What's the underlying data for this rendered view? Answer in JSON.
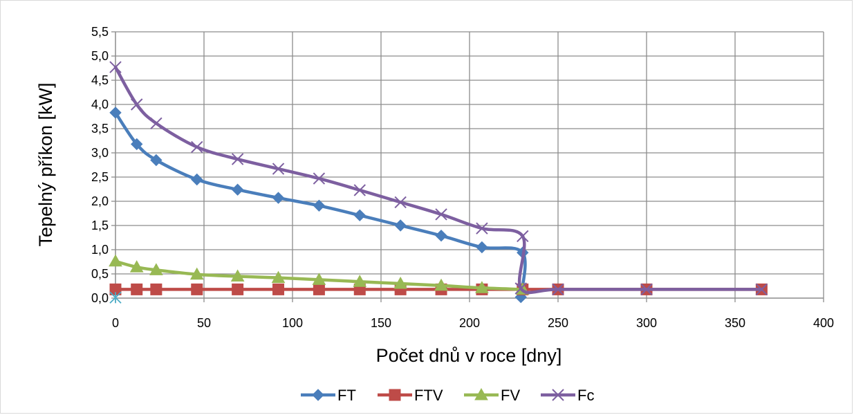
{
  "chart_data": {
    "type": "line",
    "title": "",
    "xlabel": "Počet dnů v roce [dny]",
    "ylabel": "Tepelný příkon [kW]",
    "xlim": [
      0,
      400
    ],
    "ylim": [
      0,
      5.5
    ],
    "x_ticks": [
      0,
      50,
      100,
      150,
      200,
      250,
      300,
      350,
      400
    ],
    "x_tick_labels": [
      "0",
      "50",
      "100",
      "150",
      "200",
      "250",
      "300",
      "350",
      "400"
    ],
    "y_ticks": [
      0,
      0.5,
      1,
      1.5,
      2,
      2.5,
      3,
      3.5,
      4,
      4.5,
      5,
      5.5
    ],
    "y_tick_labels": [
      "0,0",
      "0,5",
      "1,0",
      "1,5",
      "2,0",
      "2,5",
      "3,0",
      "3,5",
      "4,0",
      "4,5",
      "5,0",
      "5,5"
    ],
    "grid": true,
    "legend_position": "bottom",
    "series": [
      {
        "name": "FT",
        "color": "#4a7ebb",
        "marker": "diamond",
        "x": [
          0,
          12,
          23,
          46,
          69,
          92,
          115,
          138,
          161,
          184,
          207,
          230,
          229
        ],
        "y": [
          3.83,
          3.18,
          2.85,
          2.45,
          2.24,
          2.07,
          1.91,
          1.71,
          1.5,
          1.29,
          1.05,
          0.94,
          0.02
        ]
      },
      {
        "name": "FTV",
        "color": "#be4b48",
        "marker": "square",
        "x": [
          0,
          12,
          23,
          46,
          69,
          92,
          115,
          138,
          161,
          184,
          207,
          230,
          250,
          300,
          365
        ],
        "y": [
          0.18,
          0.18,
          0.18,
          0.18,
          0.18,
          0.18,
          0.18,
          0.18,
          0.18,
          0.18,
          0.18,
          0.18,
          0.18,
          0.18,
          0.18
        ]
      },
      {
        "name": "FV",
        "color": "#98b954",
        "marker": "triangle",
        "x": [
          0,
          12,
          23,
          46,
          69,
          92,
          115,
          138,
          161,
          184,
          207,
          230
        ],
        "y": [
          0.76,
          0.64,
          0.58,
          0.49,
          0.45,
          0.42,
          0.38,
          0.34,
          0.3,
          0.26,
          0.21,
          0.18
        ]
      },
      {
        "name": "Fc",
        "color": "#7d5fa0",
        "marker": "x",
        "x": [
          0,
          12,
          23,
          46,
          69,
          92,
          115,
          138,
          161,
          184,
          207,
          230,
          229,
          250,
          300,
          365
        ],
        "y": [
          4.77,
          4.0,
          3.61,
          3.12,
          2.87,
          2.67,
          2.47,
          2.23,
          1.98,
          1.73,
          1.44,
          1.28,
          0.2,
          0.18,
          0.18,
          0.18
        ]
      }
    ],
    "extra_point": {
      "x": 0,
      "y": 0.01,
      "marker": "asterisk",
      "color": "#4bacc6"
    }
  }
}
